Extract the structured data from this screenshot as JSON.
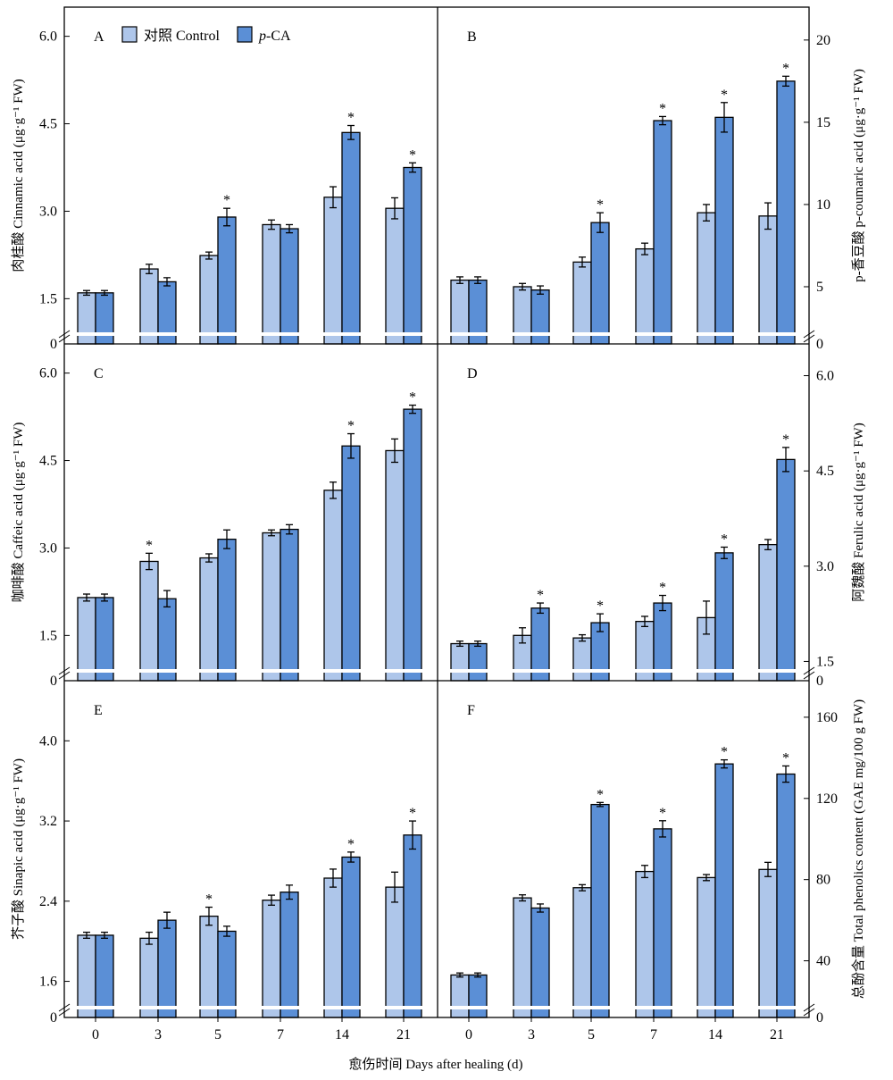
{
  "legend": {
    "control": "对照 Control",
    "treatment": "p-CA",
    "treatment_prefix": "p",
    "treatment_suffix": "-CA"
  },
  "x_title": "愈伤时间 Days after healing (d)",
  "colors": {
    "control": "#aec6ea",
    "treatment": "#5b8fd6"
  },
  "chart_data": [
    {
      "panel": "A",
      "type": "bar",
      "ylabel": "肉桂酸 Cinnamic acid (μg·g⁻¹ FW)",
      "categories": [
        "0",
        "3",
        "5",
        "7",
        "14",
        "21"
      ],
      "yticks": [
        1.5,
        3.0,
        4.5,
        6.0
      ],
      "ytick_labels": [
        "1.5",
        "3.0",
        "4.5",
        "6.0"
      ],
      "ylim": [
        1.0,
        6.5
      ],
      "broken_axis": true,
      "series": [
        {
          "name": "对照 Control",
          "values": [
            1.6,
            2.01,
            2.24,
            2.77,
            3.24,
            3.05
          ],
          "errors": [
            0.04,
            0.08,
            0.06,
            0.08,
            0.18,
            0.18
          ],
          "sig": [
            false,
            false,
            false,
            false,
            false,
            false
          ]
        },
        {
          "name": "p-CA",
          "values": [
            1.6,
            1.79,
            2.9,
            2.7,
            4.35,
            3.75
          ],
          "errors": [
            0.04,
            0.07,
            0.15,
            0.07,
            0.12,
            0.08
          ],
          "sig": [
            false,
            false,
            true,
            false,
            true,
            true
          ]
        }
      ]
    },
    {
      "panel": "B",
      "type": "bar",
      "ylabel": "p-香豆酸 p-coumaric acid (μg·g⁻¹ FW)",
      "categories": [
        "0",
        "3",
        "5",
        "7",
        "14",
        "21"
      ],
      "yticks": [
        5,
        10,
        15,
        20
      ],
      "ytick_labels": [
        "5",
        "10",
        "15",
        "20"
      ],
      "ylim": [
        2.5,
        22.0
      ],
      "broken_axis": true,
      "series": [
        {
          "name": "对照 Control",
          "values": [
            5.4,
            5.0,
            6.5,
            7.3,
            9.5,
            9.3
          ],
          "errors": [
            0.2,
            0.2,
            0.3,
            0.35,
            0.5,
            0.8
          ],
          "sig": [
            false,
            false,
            false,
            false,
            false,
            false
          ]
        },
        {
          "name": "p-CA",
          "values": [
            5.4,
            4.8,
            8.9,
            15.1,
            15.3,
            17.5
          ],
          "errors": [
            0.2,
            0.25,
            0.6,
            0.25,
            0.9,
            0.3
          ],
          "sig": [
            false,
            false,
            true,
            true,
            true,
            true
          ]
        }
      ]
    },
    {
      "panel": "C",
      "type": "bar",
      "ylabel": "咖啡酸 Caffeic acid (μg·g⁻¹ FW)",
      "categories": [
        "0",
        "3",
        "5",
        "7",
        "14",
        "21"
      ],
      "yticks": [
        1.5,
        3.0,
        4.5,
        6.0
      ],
      "ytick_labels": [
        "1.5",
        "3.0",
        "4.5",
        "6.0"
      ],
      "ylim": [
        1.0,
        6.5
      ],
      "broken_axis": true,
      "series": [
        {
          "name": "对照 Control",
          "values": [
            2.15,
            2.77,
            2.83,
            3.26,
            3.99,
            4.67
          ],
          "errors": [
            0.06,
            0.14,
            0.07,
            0.05,
            0.14,
            0.2
          ],
          "sig": [
            false,
            true,
            false,
            false,
            false,
            false
          ]
        },
        {
          "name": "p-CA",
          "values": [
            2.15,
            2.13,
            3.15,
            3.32,
            4.75,
            5.38
          ],
          "errors": [
            0.06,
            0.14,
            0.16,
            0.08,
            0.21,
            0.07
          ],
          "sig": [
            false,
            false,
            false,
            false,
            true,
            true
          ]
        }
      ]
    },
    {
      "panel": "D",
      "type": "bar",
      "ylabel": "阿魏酸 Ferulic acid (μg·g⁻¹ FW)",
      "categories": [
        "0",
        "3",
        "5",
        "7",
        "14",
        "21"
      ],
      "yticks": [
        1.5,
        3.0,
        4.5,
        6.0
      ],
      "ytick_labels": [
        "1.5",
        "3.0",
        "4.5",
        "6.0"
      ],
      "ylim": [
        1.45,
        6.5
      ],
      "broken_axis": true,
      "series": [
        {
          "name": "对照 Control",
          "values": [
            1.78,
            1.91,
            1.87,
            2.13,
            2.19,
            3.34
          ],
          "errors": [
            0.04,
            0.12,
            0.05,
            0.08,
            0.26,
            0.08
          ],
          "sig": [
            false,
            false,
            false,
            false,
            false,
            false
          ]
        },
        {
          "name": "p-CA",
          "values": [
            1.78,
            2.34,
            2.11,
            2.42,
            3.21,
            4.68
          ],
          "errors": [
            0.04,
            0.08,
            0.14,
            0.12,
            0.09,
            0.19
          ],
          "sig": [
            false,
            true,
            true,
            true,
            true,
            true
          ]
        }
      ]
    },
    {
      "panel": "E",
      "type": "bar",
      "ylabel": "芥子酸 Sinapic acid (μg·g⁻¹ FW)",
      "categories": [
        "0",
        "3",
        "5",
        "7",
        "14",
        "21"
      ],
      "yticks": [
        1.6,
        2.4,
        3.2,
        4.0
      ],
      "ytick_labels": [
        "1.6",
        "2.4",
        "3.2",
        "4.0"
      ],
      "ylim": [
        1.4,
        4.6
      ],
      "broken_axis": true,
      "series": [
        {
          "name": "对照 Control",
          "values": [
            2.06,
            2.03,
            2.25,
            2.41,
            2.63,
            2.54
          ],
          "errors": [
            0.03,
            0.06,
            0.09,
            0.05,
            0.09,
            0.15
          ],
          "sig": [
            false,
            false,
            true,
            false,
            false,
            false
          ]
        },
        {
          "name": "p-CA",
          "values": [
            2.06,
            2.21,
            2.1,
            2.49,
            2.84,
            3.06
          ],
          "errors": [
            0.03,
            0.08,
            0.05,
            0.07,
            0.05,
            0.14
          ],
          "sig": [
            false,
            false,
            false,
            false,
            true,
            true
          ]
        }
      ]
    },
    {
      "panel": "F",
      "type": "bar",
      "ylabel": "总酚含量 Total phenolics content (GAE mg/100 g FW)",
      "categories": [
        "0",
        "3",
        "5",
        "7",
        "14",
        "21"
      ],
      "yticks": [
        40,
        80,
        120,
        160
      ],
      "ytick_labels": [
        "40",
        "80",
        "120",
        "160"
      ],
      "ylim": [
        20,
        178
      ],
      "broken_axis": true,
      "series": [
        {
          "name": "对照 Control",
          "values": [
            33,
            71,
            76,
            84,
            81,
            85
          ],
          "errors": [
            1,
            1.5,
            1.5,
            3,
            1.5,
            3.5
          ],
          "sig": [
            false,
            false,
            false,
            false,
            false,
            false
          ]
        },
        {
          "name": "p-CA",
          "values": [
            33,
            66,
            117,
            105,
            137,
            132
          ],
          "errors": [
            1,
            2,
            1,
            4,
            2,
            4
          ],
          "sig": [
            false,
            false,
            true,
            true,
            true,
            true
          ]
        }
      ]
    }
  ]
}
